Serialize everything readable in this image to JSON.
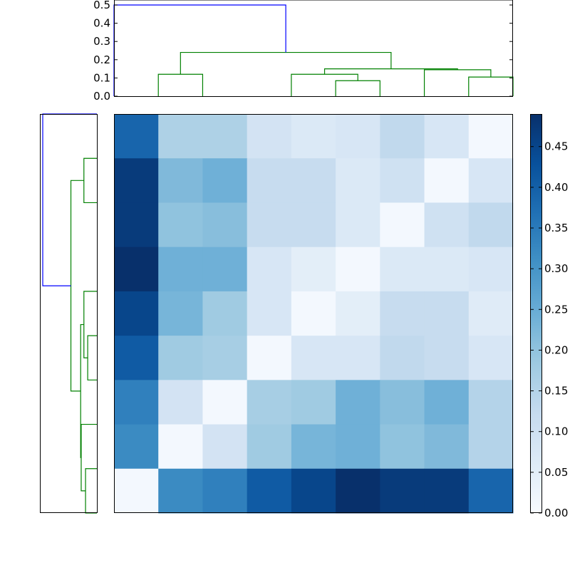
{
  "chart_data": [
    {
      "type": "dendrogram",
      "orientation": "top",
      "ylim": [
        0,
        0.5
      ],
      "yticks": [
        "0.0",
        "0.1",
        "0.2",
        "0.3",
        "0.4",
        "0.5"
      ],
      "leaf_count": 9,
      "links": [
        {
          "left": [
            0.5,
            0.0
          ],
          "right": [
            1.5,
            0.0
          ],
          "height": 0.12,
          "color": "#008000"
        },
        {
          "left": [
            4.5,
            0.0
          ],
          "right": [
            5.5,
            0.0
          ],
          "height": 0.085,
          "color": "#008000"
        },
        {
          "left": [
            3.5,
            0.0
          ],
          "right": [
            5.0,
            0.085
          ],
          "height": 0.12,
          "color": "#008000"
        },
        {
          "left": [
            7.5,
            0.0
          ],
          "right": [
            8.5,
            0.0
          ],
          "height": 0.105,
          "color": "#008000"
        },
        {
          "left": [
            6.5,
            0.0
          ],
          "right": [
            8.0,
            0.105
          ],
          "height": 0.145,
          "color": "#008000"
        },
        {
          "left": [
            4.25,
            0.12
          ],
          "right": [
            7.25,
            0.145
          ],
          "height": 0.15,
          "color": "#008000"
        },
        {
          "left": [
            1.0,
            0.12
          ],
          "right": [
            5.75,
            0.15
          ],
          "height": 0.24,
          "color": "#008000"
        },
        {
          "left": [
            -0.5,
            0.0
          ],
          "right": [
            3.375,
            0.24
          ],
          "height": 0.5,
          "color": "#0000ff"
        }
      ]
    },
    {
      "type": "dendrogram",
      "orientation": "left",
      "ylim": [
        0,
        0.5
      ],
      "leaf_count": 9,
      "links": [
        {
          "left": [
            0.5,
            0.0
          ],
          "right": [
            1.5,
            0.0
          ],
          "height": 0.12,
          "color": "#008000"
        },
        {
          "left": [
            4.5,
            0.0
          ],
          "right": [
            5.5,
            0.0
          ],
          "height": 0.085,
          "color": "#008000"
        },
        {
          "left": [
            3.5,
            0.0
          ],
          "right": [
            5.0,
            0.085
          ],
          "height": 0.12,
          "color": "#008000"
        },
        {
          "left": [
            7.5,
            0.0
          ],
          "right": [
            8.5,
            0.0
          ],
          "height": 0.105,
          "color": "#008000"
        },
        {
          "left": [
            6.5,
            0.0
          ],
          "right": [
            8.0,
            0.105
          ],
          "height": 0.145,
          "color": "#008000"
        },
        {
          "left": [
            4.25,
            0.12
          ],
          "right": [
            7.25,
            0.145
          ],
          "height": 0.15,
          "color": "#008000"
        },
        {
          "left": [
            1.0,
            0.12
          ],
          "right": [
            5.75,
            0.15
          ],
          "height": 0.24,
          "color": "#008000"
        },
        {
          "left": [
            -0.5,
            0.0
          ],
          "right": [
            3.375,
            0.24
          ],
          "height": 0.5,
          "color": "#0000ff"
        }
      ]
    },
    {
      "type": "heatmap",
      "colormap": "Blues",
      "vmin": 0.0,
      "vmax": 0.49,
      "rows": 9,
      "cols": 9,
      "matrix": [
        [
          0.39,
          0.16,
          0.16,
          0.09,
          0.07,
          0.08,
          0.13,
          0.08,
          0.01
        ],
        [
          0.47,
          0.22,
          0.24,
          0.12,
          0.12,
          0.07,
          0.1,
          0.01,
          0.08
        ],
        [
          0.47,
          0.2,
          0.21,
          0.12,
          0.12,
          0.07,
          0.01,
          0.1,
          0.13
        ],
        [
          0.49,
          0.24,
          0.24,
          0.08,
          0.05,
          0.01,
          0.07,
          0.07,
          0.08
        ],
        [
          0.45,
          0.23,
          0.18,
          0.08,
          0.01,
          0.05,
          0.12,
          0.12,
          0.06
        ],
        [
          0.41,
          0.18,
          0.17,
          0.01,
          0.08,
          0.08,
          0.13,
          0.12,
          0.08
        ],
        [
          0.34,
          0.09,
          0.01,
          0.17,
          0.18,
          0.24,
          0.21,
          0.24,
          0.15
        ],
        [
          0.32,
          0.01,
          0.09,
          0.18,
          0.23,
          0.24,
          0.2,
          0.22,
          0.15
        ],
        [
          0.01,
          0.32,
          0.34,
          0.41,
          0.45,
          0.49,
          0.47,
          0.47,
          0.39
        ]
      ]
    },
    {
      "type": "colorbar",
      "colormap": "Blues",
      "range": [
        0.0,
        0.49
      ],
      "ticks": [
        "0.00",
        "0.05",
        "0.10",
        "0.15",
        "0.20",
        "0.25",
        "0.30",
        "0.35",
        "0.40",
        "0.45"
      ]
    }
  ]
}
